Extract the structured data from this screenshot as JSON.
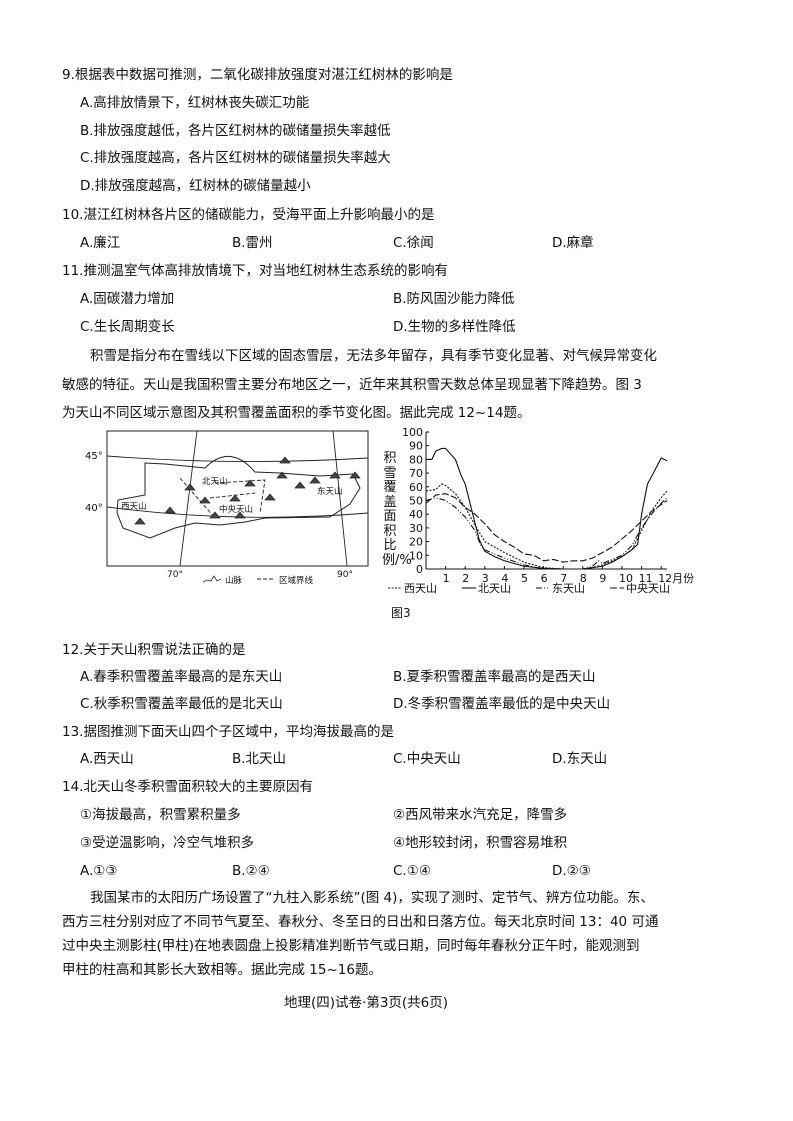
{
  "q9": {
    "stem": "9.根据表中数据可推测，二氧化碳排放强度对湛江红树林的影响是",
    "options": [
      "A.高排放情景下，红树林丧失碳汇功能",
      "B.排放强度越低，各片区红树林的碳储量损失率越低",
      "C.排放强度越高，各片区红树林的碳储量损失率越大",
      "D.排放强度越高，红树林的碳储量越小"
    ]
  },
  "q10": {
    "stem": "10.湛江红树林各片区的储碳能力，受海平面上升影响最小的是",
    "options": [
      "A.廉江",
      "B.雷州",
      "C.徐闻",
      "D.麻章"
    ]
  },
  "q11": {
    "stem": "11.推测温室气体高排放情境下，对当地红树林生态系统的影响有",
    "options": [
      "A.固碳潜力增加",
      "B.防风固沙能力降低",
      "C.生长周期变长",
      "D.生物的多样性降低"
    ]
  },
  "passage1": [
    "积雪是指分布在雪线以下区域的固态雪层，无法多年留存，具有季节变化显著、对气候异常变化",
    "敏感的特征。天山是我国积雪主要分布地区之一，近年来其积雪天数总体呈现显著下降趋势。图 3",
    "为天山不同区域示意图及其积雪覆盖面积的季节变化图。据此完成 12~14题。"
  ],
  "figure": {
    "caption": "图3",
    "map": {
      "lat_labels": [
        "45°",
        "40°"
      ],
      "lon_labels": [
        "70°",
        "90°"
      ],
      "regions": [
        "北天山",
        "东天山",
        "西天山",
        "中央天山"
      ],
      "legend": [
        "山脉",
        "区域界线"
      ]
    },
    "ylabel": "积雪覆盖面积比例/%"
  },
  "chart_data": {
    "type": "line",
    "ylabel": "积雪覆盖面积比例/%",
    "ylim": [
      0,
      100
    ],
    "yticks": [
      0,
      10,
      20,
      30,
      40,
      50,
      60,
      70,
      80,
      90,
      100
    ],
    "xticks": [
      "1",
      "2",
      "3",
      "4",
      "5",
      "6",
      "7",
      "8",
      "9",
      "10",
      "11",
      "12月份"
    ],
    "xlim": [
      0,
      12.3
    ],
    "legend_position": "bottom",
    "series": [
      {
        "name": "西天山",
        "style": "dotted",
        "x": [
          0,
          0.5,
          0.8,
          1,
          1.5,
          2,
          2.5,
          3,
          3.5,
          4,
          5,
          6,
          7,
          8,
          8.5,
          9,
          10,
          10.5,
          11,
          11.5,
          12,
          12.3
        ],
        "y": [
          57,
          58,
          62,
          61,
          55,
          45,
          32,
          20,
          16,
          12,
          5,
          1,
          0,
          0,
          1,
          3,
          9,
          14,
          28,
          42,
          52,
          57
        ]
      },
      {
        "name": "北天山",
        "style": "solid",
        "x": [
          0,
          0.3,
          0.5,
          0.8,
          1,
          1.5,
          1.8,
          2,
          2.3,
          2.7,
          3,
          3.5,
          4,
          5,
          6,
          7,
          8,
          8.5,
          9,
          9.5,
          10,
          10.5,
          10.8,
          11,
          11.3,
          11.6,
          12,
          12.3
        ],
        "y": [
          80,
          80,
          86,
          88,
          88,
          80,
          68,
          62,
          45,
          22,
          13,
          9,
          6,
          2,
          0.5,
          0,
          0,
          1,
          2,
          5,
          9,
          14,
          18,
          40,
          62,
          70,
          81,
          79
        ]
      },
      {
        "name": "东天山",
        "style": "dash-dot",
        "x": [
          0,
          0.5,
          1,
          1.5,
          2,
          2.5,
          2.8,
          3,
          3.5,
          4,
          5,
          6,
          7,
          8,
          8.5,
          8.8,
          9,
          9.5,
          10,
          10.5,
          11,
          11.5,
          12,
          12.3
        ],
        "y": [
          50,
          52,
          50,
          45,
          38,
          28,
          17,
          14,
          11,
          8,
          3,
          0,
          0,
          0,
          2,
          6,
          4,
          7,
          10,
          17,
          30,
          40,
          48,
          52
        ]
      },
      {
        "name": "中央天山",
        "style": "dashed",
        "x": [
          0,
          0.5,
          1,
          1.5,
          2,
          2.5,
          3,
          3.5,
          4,
          4.5,
          5,
          5.5,
          6,
          6.5,
          7,
          7.5,
          8,
          8.5,
          9,
          9.5,
          10,
          10.5,
          11,
          11.5,
          12,
          12.3
        ],
        "y": [
          48,
          54,
          55,
          52,
          45,
          40,
          33,
          25,
          20,
          16,
          11,
          10,
          6,
          7,
          5,
          6,
          6,
          8,
          12,
          16,
          22,
          28,
          35,
          42,
          47,
          50
        ]
      }
    ]
  },
  "q12": {
    "stem": "12.关于天山积雪说法正确的是",
    "options": [
      "A.春季积雪覆盖率最高的是东天山",
      "B.夏季积雪覆盖率最高的是西天山",
      "C.秋季积雪覆盖率最低的是北天山",
      "D.冬季积雪覆盖率最低的是中央天山"
    ]
  },
  "q13": {
    "stem": "13.据图推测下面天山四个子区域中，平均海拔最高的是",
    "options": [
      "A.西天山",
      "B.北天山",
      "C.中央天山",
      "D.东天山"
    ]
  },
  "q14": {
    "stem": "14.北天山冬季积雪面积较大的主要原因有",
    "items": [
      "①海拔最高，积雪累积量多",
      "②西风带来水汽充足，降雪多",
      "③受逆温影响，冷空气堆积多",
      "④地形较封闭，积雪容易堆积"
    ],
    "options": [
      "A.①③",
      "B.②④",
      "C.①④",
      "D.②③"
    ]
  },
  "passage2": [
    "我国某市的太阳历广场设置了“九柱入影系统”(图 4)，实现了测时、定节气、辨方位功能。东、",
    "西方三柱分别对应了不同节气夏至、春秋分、冬至日的日出和日落方位。每天北京时间 13：40 可通",
    "过中央主测影柱(甲柱)在地表圆盘上投影精准判断节气或日期，同时每年春秋分正午时，能观测到",
    "甲柱的柱高和其影长大致相等。据此完成 15~16题。"
  ],
  "footer": "地理(四)试卷·第3页(共6页)"
}
